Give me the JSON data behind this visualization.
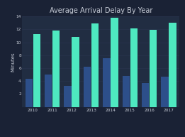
{
  "title": "Average Arrival Delay By Year",
  "years": [
    "2010",
    "2011",
    "2012",
    "2013",
    "2014",
    "2015",
    "2016",
    "2017"
  ],
  "overall_avg": [
    4.4,
    5.0,
    3.3,
    6.2,
    7.5,
    4.8,
    3.7,
    4.7
  ],
  "early_set_zero": [
    11.3,
    11.8,
    10.8,
    12.9,
    13.8,
    12.2,
    11.9,
    13.0
  ],
  "bar_color_overall": "#2d4f8a",
  "bar_color_early": "#4ee8c0",
  "background_color": "#1a2235",
  "plot_bg_color": "#212d42",
  "text_color": "#c8cdd8",
  "ylabel": "Minutes",
  "ylim": [
    0,
    14
  ],
  "yticks": [
    2,
    4,
    6,
    8,
    10,
    12,
    14
  ],
  "title_fontsize": 7.0,
  "axis_fontsize": 5.0,
  "tick_fontsize": 4.2,
  "legend_fontsize": 3.8,
  "bar_width": 0.38,
  "bar_gap": 0.02
}
